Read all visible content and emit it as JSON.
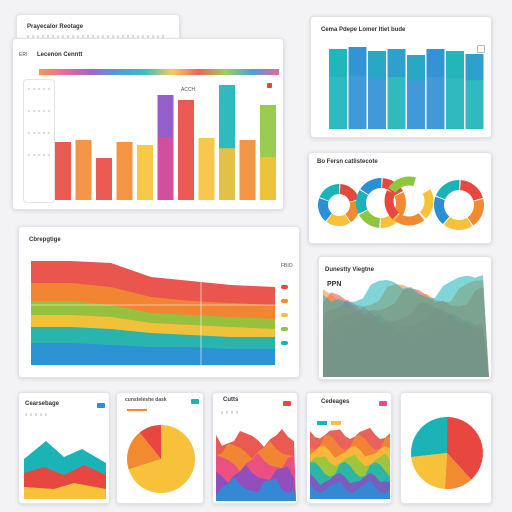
{
  "windows": {
    "top_left_back": {
      "title": "Prayecalor Reotage"
    },
    "top_left_front": {
      "title": "Lecenon Cenntt",
      "label_top": "ERI",
      "label_mid": "ACCH"
    },
    "top_right": {
      "title": "Cema Pdepe Lomer Itiet bude"
    },
    "donuts": {
      "title": "Bo Fersn catlistecote"
    },
    "middle_left": {
      "title": "Cbrepgtige",
      "label_right": "FBIO"
    },
    "middle_right": {
      "title": "Dunestty Viegtne",
      "label": "PPN"
    },
    "bottom_1": {
      "title": "Cearsebage"
    },
    "bottom_2": {
      "title": "cunsteleshe dask"
    },
    "bottom_3": {
      "title": "Cutts"
    },
    "bottom_4": {
      "title": "Cedeages"
    }
  },
  "colors": {
    "red": "#e8473f",
    "orange": "#f28a30",
    "yellow": "#f7c23a",
    "green": "#8fc63f",
    "teal": "#19b3b8",
    "blue": "#2b8fd6",
    "purple": "#8a4ec4",
    "pink": "#e94a8b"
  },
  "chart_data": [
    {
      "type": "bar",
      "name": "main-bar-chart",
      "values": [
        58,
        60,
        42,
        58,
        55,
        105,
        100,
        62,
        115,
        60,
        95
      ]
    },
    {
      "type": "bar",
      "name": "top-right-bar-chart",
      "values": [
        80,
        82,
        78,
        80,
        74,
        80,
        78,
        75
      ]
    },
    {
      "type": "pie",
      "name": "donut-charts",
      "count": 3
    },
    {
      "type": "area",
      "name": "stacked-area-chart",
      "series_count": 6
    },
    {
      "type": "area",
      "name": "density-chart"
    },
    {
      "type": "area",
      "name": "bottom-area-chart-1"
    },
    {
      "type": "pie",
      "name": "bottom-pie-chart-1"
    },
    {
      "type": "area",
      "name": "bottom-area-chart-2"
    },
    {
      "type": "area",
      "name": "bottom-area-chart-3"
    },
    {
      "type": "pie",
      "name": "bottom-pie-chart-2"
    }
  ]
}
